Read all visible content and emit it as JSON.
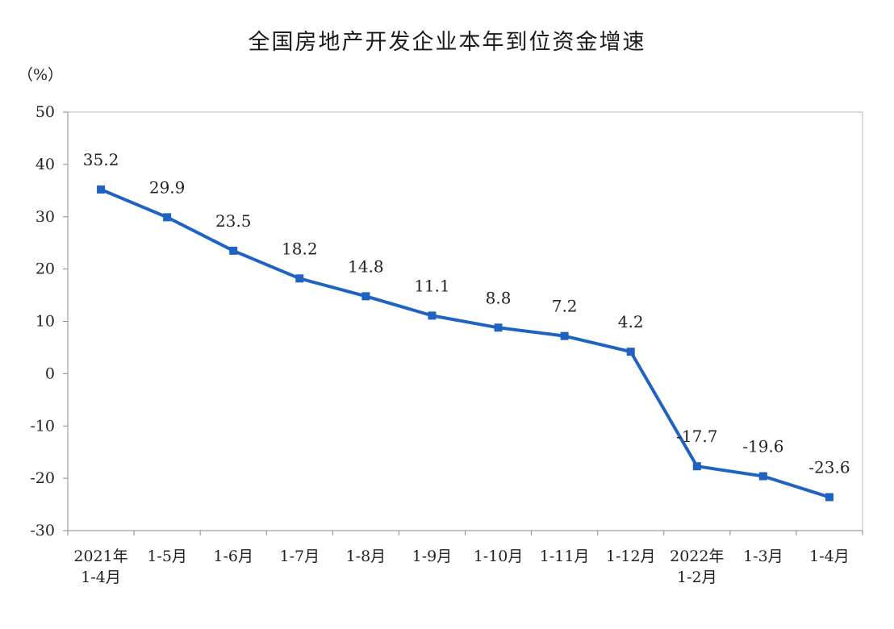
{
  "chart_data": {
    "type": "line",
    "title": "全国房地产开发企业本年到位资金增速",
    "ylabel": "（%）",
    "ylim": [
      -30,
      50
    ],
    "yticks": [
      50,
      40,
      30,
      20,
      10,
      0,
      -10,
      -20,
      -30
    ],
    "grid": false,
    "categories": [
      [
        "2021年",
        "1-4月"
      ],
      [
        "1-5月"
      ],
      [
        "1-6月"
      ],
      [
        "1-7月"
      ],
      [
        "1-8月"
      ],
      [
        "1-9月"
      ],
      [
        "1-10月"
      ],
      [
        "1-11月"
      ],
      [
        "1-12月"
      ],
      [
        "2022年",
        "1-2月"
      ],
      [
        "1-3月"
      ],
      [
        "1-4月"
      ]
    ],
    "series": [
      {
        "values": [
          35.2,
          29.9,
          23.5,
          18.2,
          14.8,
          11.1,
          8.8,
          7.2,
          4.2,
          -17.7,
          -19.6,
          -23.6
        ],
        "labels": [
          "35.2",
          "29.9",
          "23.5",
          "18.2",
          "14.8",
          "11.1",
          "8.8",
          "7.2",
          "4.2",
          "-17.7",
          "-19.6",
          "-23.6"
        ],
        "color": "#1f63c2"
      }
    ],
    "axis_color": "#8a8a8a",
    "frame_color": "#b8b8b8"
  }
}
